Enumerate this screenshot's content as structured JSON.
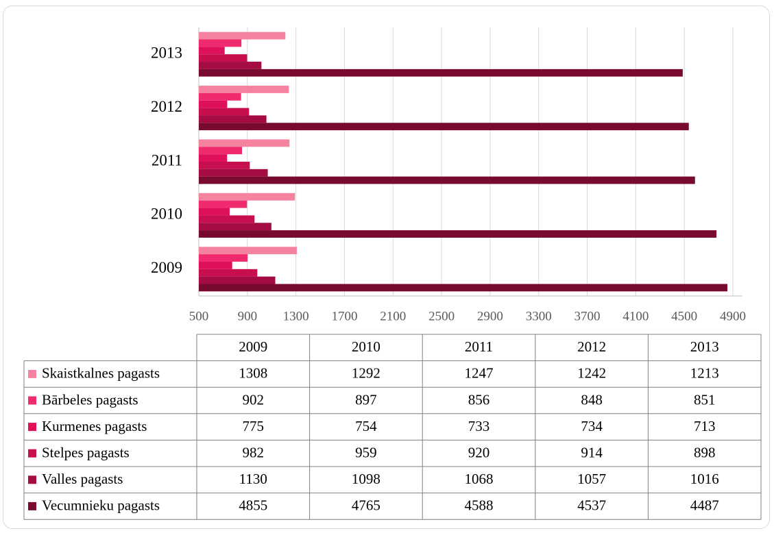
{
  "chart_data": {
    "type": "bar",
    "orientation": "horizontal",
    "categories": [
      "2009",
      "2010",
      "2011",
      "2012",
      "2013"
    ],
    "series": [
      {
        "name": "Skaistkalnes pagasts",
        "color": "#f5839f",
        "values": [
          1308,
          1292,
          1247,
          1242,
          1213
        ]
      },
      {
        "name": "Bārbeles pagasts",
        "color": "#f02a6e",
        "values": [
          902,
          897,
          856,
          848,
          851
        ]
      },
      {
        "name": "Kurmenes pagasts",
        "color": "#de0f5b",
        "values": [
          775,
          754,
          733,
          734,
          713
        ]
      },
      {
        "name": "Stelpes pagasts",
        "color": "#c70f50",
        "values": [
          982,
          959,
          920,
          914,
          898
        ]
      },
      {
        "name": "Valles pagasts",
        "color": "#a50c43",
        "values": [
          1130,
          1098,
          1068,
          1057,
          1016
        ]
      },
      {
        "name": "Vecumnieku pagasts",
        "color": "#780a2f",
        "values": [
          4855,
          4765,
          4588,
          4537,
          4487
        ]
      }
    ],
    "xlim": [
      500,
      4900
    ],
    "xticks": [
      500,
      900,
      1300,
      1700,
      2100,
      2500,
      2900,
      3300,
      3700,
      4100,
      4500,
      4900
    ],
    "grid": true,
    "data_table": true
  }
}
